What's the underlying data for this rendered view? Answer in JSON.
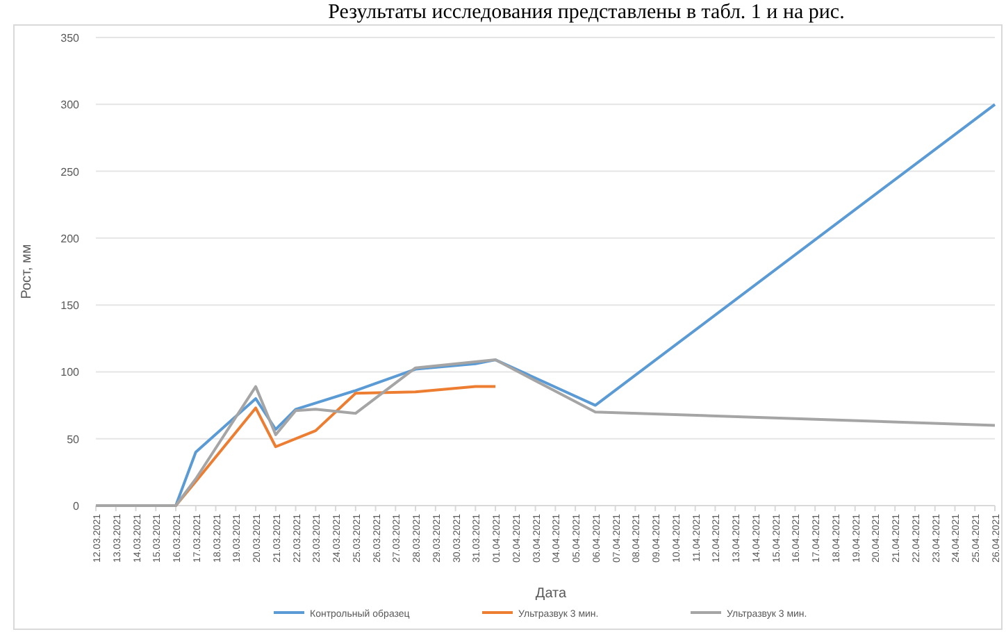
{
  "chart_data": {
    "type": "line",
    "xlabel": "Дата",
    "ylabel": "Рост, мм",
    "annotations": [
      "Результаты исследования представлены в табл. 1 и на рис."
    ],
    "xlim": [
      "2021-03-12",
      "2021-04-26"
    ],
    "xticks": [
      {
        "value": "2021-03-12",
        "label": "12.03.2021"
      },
      {
        "value": "2021-03-13",
        "label": "13.03.2021"
      },
      {
        "value": "2021-03-14",
        "label": "14.03.2021"
      },
      {
        "value": "2021-03-15",
        "label": "15.03.2021"
      },
      {
        "value": "2021-03-16",
        "label": "16.03.2021"
      },
      {
        "value": "2021-03-17",
        "label": "17.03.2021"
      },
      {
        "value": "2021-03-18",
        "label": "18.03.2021"
      },
      {
        "value": "2021-03-19",
        "label": "19.03.2021"
      },
      {
        "value": "2021-03-20",
        "label": "20.03.2021"
      },
      {
        "value": "2021-03-21",
        "label": "21.03.2021"
      },
      {
        "value": "2021-03-22",
        "label": "22.03.2021"
      },
      {
        "value": "2021-03-23",
        "label": "23.03.2021"
      },
      {
        "value": "2021-03-24",
        "label": "24.03.2021"
      },
      {
        "value": "2021-03-25",
        "label": "25.03.2021"
      },
      {
        "value": "2021-03-26",
        "label": "26.03.2021"
      },
      {
        "value": "2021-03-27",
        "label": "27.03.2021"
      },
      {
        "value": "2021-03-28",
        "label": "28.03.2021"
      },
      {
        "value": "2021-03-29",
        "label": "29.03.2021"
      },
      {
        "value": "2021-03-30",
        "label": "30.03.2021"
      },
      {
        "value": "2021-03-31",
        "label": "31.03.2021"
      },
      {
        "value": "2021-04-01",
        "label": "01.04.2021"
      },
      {
        "value": "2021-04-02",
        "label": "02.04.2021"
      },
      {
        "value": "2021-04-03",
        "label": "03.04.2021"
      },
      {
        "value": "2021-04-04",
        "label": "04.04.2021"
      },
      {
        "value": "2021-04-05",
        "label": "05.04.2021"
      },
      {
        "value": "2021-04-06",
        "label": "06.04.2021"
      },
      {
        "value": "2021-04-07",
        "label": "07.04.2021"
      },
      {
        "value": "2021-04-08",
        "label": "08.04.2021"
      },
      {
        "value": "2021-04-09",
        "label": "09.04.2021"
      },
      {
        "value": "2021-04-10",
        "label": "10.04.2021"
      },
      {
        "value": "2021-04-11",
        "label": "11.04.2021"
      },
      {
        "value": "2021-04-12",
        "label": "12.04.2021"
      },
      {
        "value": "2021-04-13",
        "label": "13.04.2021"
      },
      {
        "value": "2021-04-14",
        "label": "14.04.2021"
      },
      {
        "value": "2021-04-15",
        "label": "15.04.2021"
      },
      {
        "value": "2021-04-16",
        "label": "16.04.2021"
      },
      {
        "value": "2021-04-17",
        "label": "17.04.2021"
      },
      {
        "value": "2021-04-18",
        "label": "18.04.2021"
      },
      {
        "value": "2021-04-19",
        "label": "19.04.2021"
      },
      {
        "value": "2021-04-20",
        "label": "20.04.2021"
      },
      {
        "value": "2021-04-21",
        "label": "21.04.2021"
      },
      {
        "value": "2021-04-22",
        "label": "22.04.2021"
      },
      {
        "value": "2021-04-23",
        "label": "23.04.2021"
      },
      {
        "value": "2021-04-24",
        "label": "24.04.2021"
      },
      {
        "value": "2021-04-25",
        "label": "25.04.2021"
      },
      {
        "value": "2021-04-26",
        "label": "26.04.2021"
      }
    ],
    "ylim": [
      0,
      350
    ],
    "yticks": [
      0,
      50,
      100,
      150,
      200,
      250,
      300,
      350
    ],
    "grid": "y",
    "legend": "bottom",
    "series": [
      {
        "name": "Контрольный образец",
        "color": "#5b9bd5",
        "x": [
          "2021-03-12",
          "2021-03-16",
          "2021-03-17",
          "2021-03-20",
          "2021-03-21",
          "2021-03-22",
          "2021-03-25",
          "2021-03-28",
          "2021-03-31",
          "2021-04-01",
          "2021-04-06",
          "2021-04-26"
        ],
        "values": [
          0,
          0,
          40,
          80,
          57,
          72,
          86,
          102,
          106,
          109,
          75,
          300
        ]
      },
      {
        "name": "Ультразвук 3 мин.",
        "color": "#ed7d31",
        "x": [
          "2021-03-12",
          "2021-03-16",
          "2021-03-17",
          "2021-03-20",
          "2021-03-21",
          "2021-03-23",
          "2021-03-25",
          "2021-03-28",
          "2021-03-31",
          "2021-04-01"
        ],
        "values": [
          0,
          0,
          18,
          73,
          44,
          56,
          84,
          85,
          89,
          89
        ]
      },
      {
        "name": "Ультразвук 3 мин.",
        "color": "#a5a5a5",
        "x": [
          "2021-03-12",
          "2021-03-16",
          "2021-03-17",
          "2021-03-20",
          "2021-03-21",
          "2021-03-22",
          "2021-03-23",
          "2021-03-25",
          "2021-03-28",
          "2021-04-01",
          "2021-04-06",
          "2021-04-26"
        ],
        "values": [
          0,
          0,
          20,
          89,
          53,
          71,
          72,
          69,
          103,
          109,
          70,
          60
        ]
      }
    ]
  }
}
